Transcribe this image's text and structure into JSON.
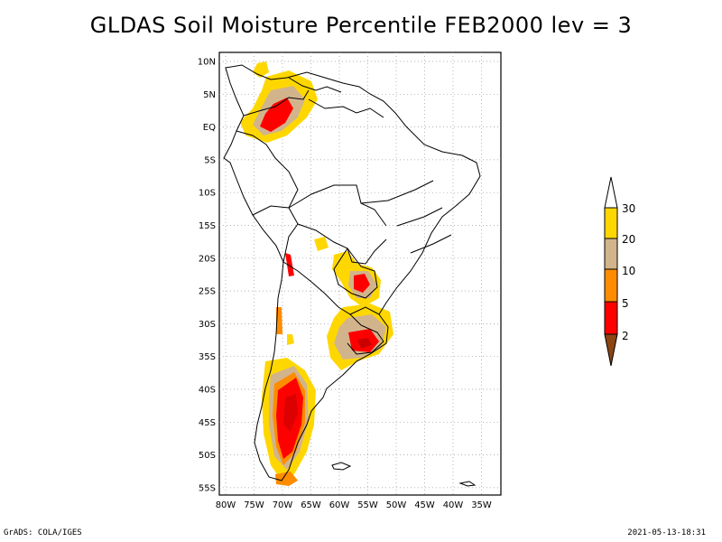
{
  "title": "GLDAS Soil Moisture Percentile FEB2000 lev = 3",
  "map": {
    "lat_labels": [
      "10N",
      "5N",
      "EQ",
      "5S",
      "10S",
      "15S",
      "20S",
      "25S",
      "30S",
      "35S",
      "40S",
      "45S",
      "50S",
      "55S"
    ],
    "lon_labels": [
      "80W",
      "75W",
      "70W",
      "65W",
      "60W",
      "55W",
      "50W",
      "45W",
      "40W",
      "35W"
    ],
    "lon_range": [
      -81,
      -31
    ],
    "lat_range": [
      -56,
      11
    ],
    "gridlines": "dotted",
    "region": "South America"
  },
  "colorbar": {
    "labels": [
      "30",
      "20",
      "10",
      "5",
      "2"
    ],
    "colors": {
      "above_30": "#ffffff",
      "20_30": "#ffd700",
      "10_20": "#d2b48c",
      "5_10": "#ff8c00",
      "2_5": "#ff0000",
      "below_2": "#8b4513"
    }
  },
  "footer": {
    "left": "GrADS: COLA/IGES",
    "right": "2021-05-13-18:31"
  }
}
